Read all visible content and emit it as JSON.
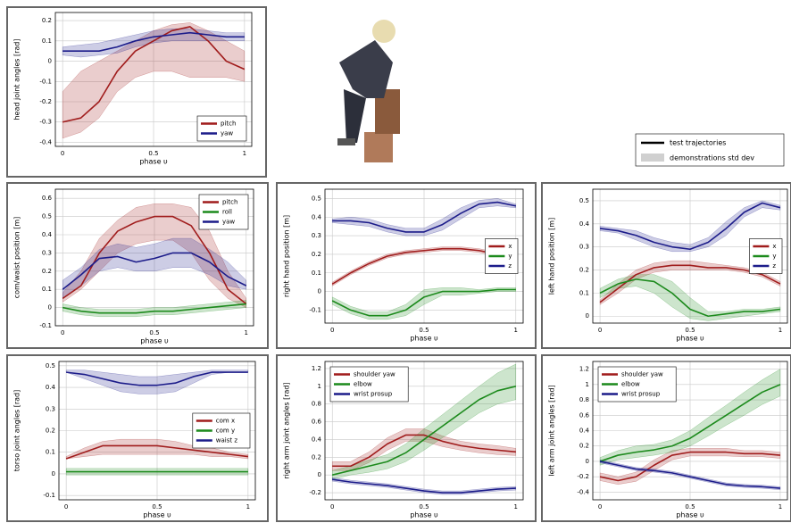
{
  "chart_data": [
    {
      "type": "line",
      "ylabel": "head joint angles [rad]",
      "xlabel": "phase υ",
      "xlim": [
        -0.04,
        1.04
      ],
      "xticks": [
        0,
        0.5,
        1
      ],
      "ylim": [
        -0.42,
        0.24
      ],
      "yticks": [
        -0.4,
        -0.3,
        -0.2,
        -0.1,
        0,
        0.1,
        0.2
      ],
      "grid": true,
      "legend": "lower right",
      "x": [
        0,
        0.1,
        0.2,
        0.3,
        0.4,
        0.5,
        0.6,
        0.7,
        0.8,
        0.9,
        1
      ],
      "series": [
        {
          "name": "pitch",
          "color": "#a01c1c",
          "values": [
            -0.3,
            -0.28,
            -0.2,
            -0.05,
            0.05,
            0.1,
            0.15,
            0.17,
            0.1,
            0.0,
            -0.04
          ],
          "lower": [
            -0.38,
            -0.35,
            -0.28,
            -0.15,
            -0.08,
            -0.05,
            -0.05,
            -0.08,
            -0.08,
            -0.08,
            -0.1
          ],
          "upper": [
            -0.15,
            -0.05,
            0.0,
            0.05,
            0.1,
            0.15,
            0.18,
            0.19,
            0.15,
            0.1,
            0.05
          ]
        },
        {
          "name": "yaw",
          "color": "#1c1c8a",
          "values": [
            0.05,
            0.05,
            0.05,
            0.07,
            0.1,
            0.12,
            0.13,
            0.14,
            0.13,
            0.12,
            0.12
          ],
          "lower": [
            0.03,
            0.02,
            0.03,
            0.04,
            0.07,
            0.09,
            0.1,
            0.1,
            0.1,
            0.1,
            0.1
          ],
          "upper": [
            0.07,
            0.08,
            0.09,
            0.11,
            0.13,
            0.15,
            0.16,
            0.16,
            0.15,
            0.14,
            0.14
          ]
        }
      ]
    },
    {
      "type": "line",
      "ylabel": "com/waist position [m]",
      "xlabel": "phase υ",
      "xlim": [
        -0.04,
        1.04
      ],
      "xticks": [
        0,
        0.5,
        1
      ],
      "ylim": [
        -0.1,
        0.65
      ],
      "yticks": [
        -0.1,
        0,
        0.1,
        0.2,
        0.3,
        0.4,
        0.5,
        0.6
      ],
      "grid": true,
      "legend": "upper right",
      "x": [
        0,
        0.1,
        0.2,
        0.3,
        0.4,
        0.5,
        0.6,
        0.7,
        0.8,
        0.9,
        1
      ],
      "series": [
        {
          "name": "pitch",
          "color": "#a01c1c",
          "values": [
            0.05,
            0.12,
            0.3,
            0.42,
            0.47,
            0.5,
            0.5,
            0.45,
            0.3,
            0.1,
            0.02
          ],
          "lower": [
            0.03,
            0.1,
            0.2,
            0.3,
            0.35,
            0.37,
            0.37,
            0.3,
            0.15,
            0.05,
            0.0
          ],
          "upper": [
            0.08,
            0.2,
            0.38,
            0.48,
            0.55,
            0.57,
            0.57,
            0.55,
            0.42,
            0.2,
            0.05
          ]
        },
        {
          "name": "roll",
          "color": "#1c8a1c",
          "values": [
            0,
            -0.02,
            -0.03,
            -0.03,
            -0.03,
            -0.02,
            -0.02,
            -0.01,
            0,
            0.01,
            0.02
          ],
          "lower": [
            -0.02,
            -0.04,
            -0.05,
            -0.05,
            -0.05,
            -0.04,
            -0.04,
            -0.03,
            -0.02,
            -0.01,
            0
          ],
          "upper": [
            0.02,
            0,
            -0.01,
            -0.01,
            -0.01,
            0,
            0,
            0.01,
            0.02,
            0.03,
            0.04
          ]
        },
        {
          "name": "yaw",
          "color": "#1c1c8a",
          "values": [
            0.1,
            0.18,
            0.27,
            0.28,
            0.25,
            0.27,
            0.3,
            0.3,
            0.25,
            0.17,
            0.12
          ],
          "lower": [
            0.05,
            0.12,
            0.2,
            0.22,
            0.2,
            0.2,
            0.22,
            0.22,
            0.18,
            0.12,
            0.1
          ],
          "upper": [
            0.15,
            0.22,
            0.32,
            0.35,
            0.33,
            0.35,
            0.38,
            0.38,
            0.32,
            0.25,
            0.15
          ]
        }
      ]
    },
    {
      "type": "line",
      "ylabel": "right hand position [m]",
      "xlabel": "phase υ",
      "xlim": [
        -0.04,
        1.04
      ],
      "xticks": [
        0,
        0.5,
        1
      ],
      "ylim": [
        -0.17,
        0.55
      ],
      "yticks": [
        -0.1,
        0,
        0.1,
        0.2,
        0.3,
        0.4,
        0.5
      ],
      "grid": true,
      "legend": "center right",
      "x": [
        0,
        0.1,
        0.2,
        0.3,
        0.4,
        0.5,
        0.6,
        0.7,
        0.8,
        0.9,
        1
      ],
      "series": [
        {
          "name": "x",
          "color": "#a01c1c",
          "values": [
            0.04,
            0.1,
            0.15,
            0.19,
            0.21,
            0.22,
            0.23,
            0.23,
            0.22,
            0.2,
            0.16
          ],
          "lower": [
            0.03,
            0.09,
            0.14,
            0.18,
            0.2,
            0.21,
            0.22,
            0.22,
            0.21,
            0.19,
            0.15
          ],
          "upper": [
            0.05,
            0.11,
            0.16,
            0.2,
            0.22,
            0.23,
            0.24,
            0.24,
            0.23,
            0.21,
            0.17
          ]
        },
        {
          "name": "y",
          "color": "#1c8a1c",
          "values": [
            -0.05,
            -0.1,
            -0.13,
            -0.13,
            -0.1,
            -0.03,
            0,
            0,
            0,
            0.01,
            0.01
          ],
          "lower": [
            -0.07,
            -0.12,
            -0.15,
            -0.15,
            -0.13,
            -0.07,
            -0.02,
            -0.02,
            -0.01,
            0,
            0
          ],
          "upper": [
            -0.03,
            -0.08,
            -0.11,
            -0.11,
            -0.07,
            0.01,
            0.02,
            0.02,
            0.01,
            0.02,
            0.02
          ]
        },
        {
          "name": "z",
          "color": "#1c1c8a",
          "values": [
            0.38,
            0.38,
            0.37,
            0.34,
            0.32,
            0.32,
            0.36,
            0.42,
            0.47,
            0.48,
            0.46
          ],
          "lower": [
            0.37,
            0.36,
            0.35,
            0.32,
            0.3,
            0.3,
            0.33,
            0.39,
            0.45,
            0.46,
            0.45
          ],
          "upper": [
            0.39,
            0.4,
            0.39,
            0.36,
            0.34,
            0.34,
            0.39,
            0.45,
            0.49,
            0.5,
            0.47
          ]
        }
      ]
    },
    {
      "type": "line",
      "ylabel": "left hand position [m]",
      "xlabel": "phase υ",
      "xlim": [
        -0.04,
        1.04
      ],
      "xticks": [
        0,
        0.5,
        1
      ],
      "ylim": [
        -0.03,
        0.55
      ],
      "yticks": [
        0,
        0.1,
        0.2,
        0.3,
        0.4,
        0.5
      ],
      "grid": true,
      "legend": "center right",
      "x": [
        0,
        0.1,
        0.2,
        0.3,
        0.4,
        0.5,
        0.6,
        0.7,
        0.8,
        0.9,
        1
      ],
      "series": [
        {
          "name": "x",
          "color": "#a01c1c",
          "values": [
            0.06,
            0.12,
            0.18,
            0.21,
            0.22,
            0.22,
            0.21,
            0.21,
            0.2,
            0.18,
            0.14
          ],
          "lower": [
            0.05,
            0.1,
            0.16,
            0.19,
            0.2,
            0.2,
            0.2,
            0.2,
            0.19,
            0.17,
            0.13
          ],
          "upper": [
            0.07,
            0.14,
            0.2,
            0.23,
            0.24,
            0.24,
            0.23,
            0.22,
            0.21,
            0.19,
            0.15
          ]
        },
        {
          "name": "y",
          "color": "#1c8a1c",
          "values": [
            0.1,
            0.14,
            0.16,
            0.15,
            0.1,
            0.03,
            0,
            0.01,
            0.02,
            0.02,
            0.03
          ],
          "lower": [
            0.08,
            0.12,
            0.13,
            0.1,
            0.04,
            -0.01,
            -0.02,
            -0.01,
            0,
            0.01,
            0.02
          ],
          "upper": [
            0.12,
            0.16,
            0.18,
            0.18,
            0.15,
            0.08,
            0.02,
            0.02,
            0.03,
            0.03,
            0.04
          ]
        },
        {
          "name": "z",
          "color": "#1c1c8a",
          "values": [
            0.38,
            0.37,
            0.35,
            0.32,
            0.3,
            0.29,
            0.32,
            0.38,
            0.45,
            0.49,
            0.47
          ],
          "lower": [
            0.37,
            0.36,
            0.33,
            0.3,
            0.28,
            0.28,
            0.3,
            0.35,
            0.43,
            0.47,
            0.46
          ],
          "upper": [
            0.39,
            0.38,
            0.37,
            0.34,
            0.32,
            0.31,
            0.34,
            0.41,
            0.47,
            0.5,
            0.48
          ]
        }
      ]
    },
    {
      "type": "line",
      "ylabel": "torso joint angles [rad]",
      "xlabel": "phase υ",
      "xlim": [
        -0.04,
        1.04
      ],
      "xticks": [
        0,
        0.5,
        1
      ],
      "ylim": [
        -0.12,
        0.52
      ],
      "yticks": [
        -0.1,
        0,
        0.1,
        0.2,
        0.3,
        0.4,
        0.5
      ],
      "grid": true,
      "legend": "center right",
      "x": [
        0,
        0.1,
        0.2,
        0.3,
        0.4,
        0.5,
        0.6,
        0.7,
        0.8,
        0.9,
        1
      ],
      "series": [
        {
          "name": "com x",
          "color": "#a01c1c",
          "values": [
            0.07,
            0.1,
            0.13,
            0.13,
            0.13,
            0.13,
            0.12,
            0.11,
            0.1,
            0.09,
            0.08
          ],
          "lower": [
            0.07,
            0.08,
            0.09,
            0.09,
            0.09,
            0.09,
            0.09,
            0.09,
            0.08,
            0.08,
            0.07
          ],
          "upper": [
            0.08,
            0.12,
            0.15,
            0.16,
            0.16,
            0.16,
            0.15,
            0.13,
            0.12,
            0.1,
            0.09
          ]
        },
        {
          "name": "com y",
          "color": "#1c8a1c",
          "values": [
            0.01,
            0.01,
            0.01,
            0.01,
            0.01,
            0.01,
            0.01,
            0.01,
            0.01,
            0.01,
            0.01
          ],
          "lower": [
            -0.005,
            -0.005,
            -0.005,
            -0.005,
            -0.005,
            -0.005,
            -0.005,
            -0.005,
            -0.005,
            -0.005,
            -0.005
          ],
          "upper": [
            0.025,
            0.025,
            0.025,
            0.025,
            0.025,
            0.025,
            0.025,
            0.025,
            0.025,
            0.025,
            0.025
          ]
        },
        {
          "name": "waist z",
          "color": "#1c1c8a",
          "values": [
            0.47,
            0.46,
            0.44,
            0.42,
            0.41,
            0.41,
            0.42,
            0.45,
            0.47,
            0.47,
            0.47
          ],
          "lower": [
            0.47,
            0.44,
            0.41,
            0.38,
            0.37,
            0.37,
            0.38,
            0.42,
            0.46,
            0.47,
            0.47
          ],
          "upper": [
            0.48,
            0.48,
            0.47,
            0.46,
            0.45,
            0.45,
            0.46,
            0.47,
            0.48,
            0.48,
            0.48
          ]
        }
      ]
    },
    {
      "type": "line",
      "ylabel": "right arm joint angles [rad]",
      "xlabel": "phase υ",
      "xlim": [
        -0.04,
        1.04
      ],
      "xticks": [
        0,
        0.5,
        1
      ],
      "ylim": [
        -0.28,
        1.28
      ],
      "yticks": [
        -0.2,
        0,
        0.2,
        0.4,
        0.6,
        0.8,
        1,
        1.2
      ],
      "grid": true,
      "legend": "upper left",
      "x": [
        0,
        0.1,
        0.2,
        0.3,
        0.4,
        0.5,
        0.6,
        0.7,
        0.8,
        0.9,
        1
      ],
      "series": [
        {
          "name": "shoulder yaw",
          "color": "#a01c1c",
          "values": [
            0.1,
            0.1,
            0.2,
            0.35,
            0.45,
            0.45,
            0.38,
            0.33,
            0.3,
            0.28,
            0.26
          ],
          "lower": [
            0.05,
            0.05,
            0.14,
            0.28,
            0.38,
            0.38,
            0.32,
            0.28,
            0.25,
            0.23,
            0.22
          ],
          "upper": [
            0.15,
            0.15,
            0.26,
            0.42,
            0.52,
            0.52,
            0.44,
            0.38,
            0.35,
            0.33,
            0.3
          ]
        },
        {
          "name": "elbow",
          "color": "#1c8a1c",
          "values": [
            0.0,
            0.05,
            0.1,
            0.15,
            0.25,
            0.4,
            0.55,
            0.7,
            0.85,
            0.95,
            1.0
          ],
          "lower": [
            -0.05,
            0.0,
            0.03,
            0.07,
            0.15,
            0.28,
            0.42,
            0.56,
            0.7,
            0.8,
            0.85
          ],
          "upper": [
            0.05,
            0.1,
            0.17,
            0.23,
            0.35,
            0.52,
            0.68,
            0.84,
            1.0,
            1.15,
            1.25
          ]
        },
        {
          "name": "wrist prosup",
          "color": "#1c1c8a",
          "values": [
            -0.05,
            -0.08,
            -0.1,
            -0.12,
            -0.15,
            -0.18,
            -0.2,
            -0.2,
            -0.18,
            -0.16,
            -0.15
          ],
          "lower": [
            -0.07,
            -0.1,
            -0.12,
            -0.14,
            -0.17,
            -0.2,
            -0.22,
            -0.22,
            -0.2,
            -0.18,
            -0.17
          ],
          "upper": [
            -0.03,
            -0.06,
            -0.08,
            -0.1,
            -0.13,
            -0.16,
            -0.18,
            -0.18,
            -0.16,
            -0.14,
            -0.13
          ]
        }
      ]
    },
    {
      "type": "line",
      "ylabel": "left arm joint angles [rad]",
      "xlabel": "phase υ",
      "xlim": [
        -0.04,
        1.04
      ],
      "xticks": [
        0,
        0.5,
        1
      ],
      "ylim": [
        -0.5,
        1.3
      ],
      "yticks": [
        -0.4,
        -0.2,
        0,
        0.2,
        0.4,
        0.6,
        0.8,
        1,
        1.2
      ],
      "grid": true,
      "legend": "upper left",
      "x": [
        0,
        0.1,
        0.2,
        0.3,
        0.4,
        0.5,
        0.6,
        0.7,
        0.8,
        0.9,
        1
      ],
      "series": [
        {
          "name": "shoulder yaw",
          "color": "#a01c1c",
          "values": [
            -0.2,
            -0.25,
            -0.2,
            -0.05,
            0.08,
            0.12,
            0.12,
            0.12,
            0.1,
            0.1,
            0.08
          ],
          "lower": [
            -0.25,
            -0.3,
            -0.26,
            -0.12,
            0.02,
            0.07,
            0.07,
            0.07,
            0.06,
            0.06,
            0.04
          ],
          "upper": [
            -0.15,
            -0.2,
            -0.14,
            0.02,
            0.14,
            0.17,
            0.17,
            0.17,
            0.14,
            0.14,
            0.12
          ]
        },
        {
          "name": "elbow",
          "color": "#1c8a1c",
          "values": [
            0.0,
            0.08,
            0.12,
            0.15,
            0.2,
            0.3,
            0.45,
            0.6,
            0.75,
            0.9,
            1.0
          ],
          "lower": [
            -0.05,
            0.02,
            0.05,
            0.08,
            0.12,
            0.2,
            0.33,
            0.47,
            0.6,
            0.74,
            0.85
          ],
          "upper": [
            0.05,
            0.14,
            0.2,
            0.22,
            0.28,
            0.4,
            0.57,
            0.73,
            0.9,
            1.06,
            1.2
          ]
        },
        {
          "name": "wrist prosup",
          "color": "#1c1c8a",
          "values": [
            0.0,
            -0.05,
            -0.1,
            -0.12,
            -0.15,
            -0.2,
            -0.25,
            -0.3,
            -0.32,
            -0.33,
            -0.35
          ],
          "lower": [
            -0.02,
            -0.07,
            -0.12,
            -0.14,
            -0.17,
            -0.22,
            -0.27,
            -0.32,
            -0.34,
            -0.35,
            -0.37
          ],
          "upper": [
            0.02,
            -0.03,
            -0.08,
            -0.1,
            -0.13,
            -0.18,
            -0.23,
            -0.28,
            -0.3,
            -0.31,
            -0.33
          ]
        }
      ]
    }
  ],
  "figure_legend": [
    "test trajectories",
    "demonstrations std dev"
  ]
}
